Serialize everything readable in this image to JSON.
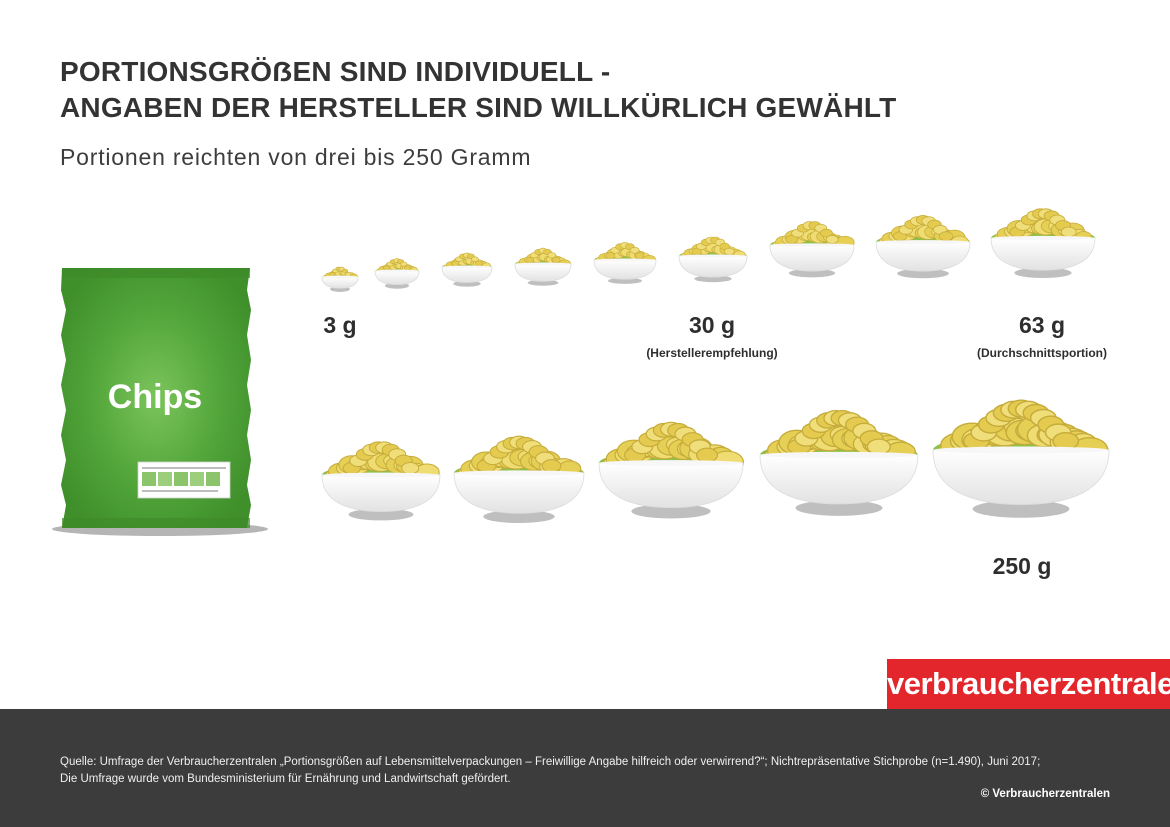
{
  "title": {
    "line1": "PORTIONSGRÖẞEN SIND INDIVIDUELL -",
    "line2": "ANGABEN DER HERSTELLER SIND WILLKÜRLICH GEWÄHLT"
  },
  "subtitle": "Portionen reichten von drei bis 250 Gramm",
  "bag": {
    "label": "Chips"
  },
  "labels": {
    "min": "3 g",
    "recommended": "30 g",
    "recommended_note": "(Herstellerempfehlung)",
    "average": "63 g",
    "average_note": "(Durchschnittsportion)",
    "max": "250 g"
  },
  "colors": {
    "bag": "#4a9e34",
    "bag_highlight": "#79c35a",
    "chips": "#e6d05a",
    "bowl": "#f4f4f4",
    "brand": "#e3262b",
    "footer": "#3c3c3c"
  },
  "logo": "verbraucherzentrale",
  "footer": {
    "source_line1": "Quelle: Umfrage der Verbraucherzentralen „Portionsgrößen auf Lebensmittelverpackungen – Freiwillige Angabe hilfreich oder verwirrend?“; Nichtrepräsentative Stichprobe (n=1.490), Juni 2017;",
    "source_line2": "Die Umfrage wurde vom Bundesministerium für Ernährung und Landwirtschaft gefördert.",
    "copyright": "© Verbraucherzentralen"
  }
}
